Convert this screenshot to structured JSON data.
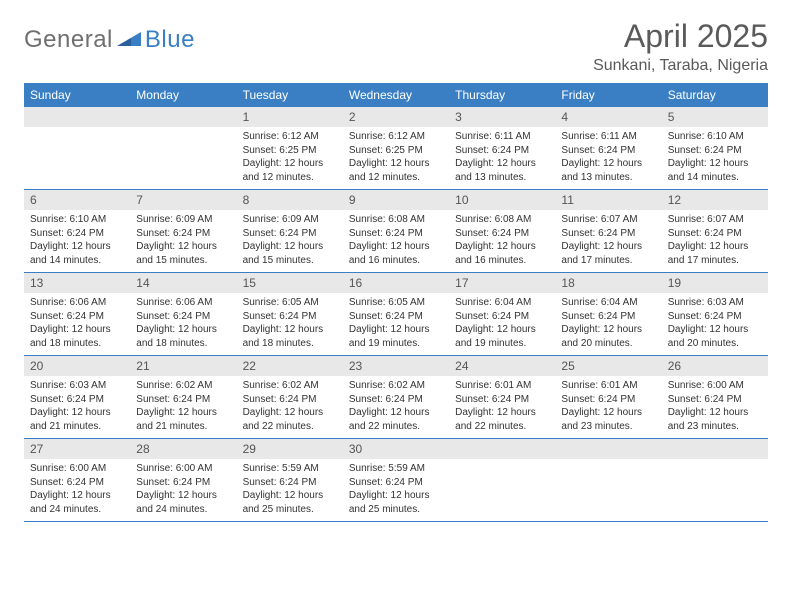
{
  "brand": {
    "general": "General",
    "blue": "Blue"
  },
  "title": "April 2025",
  "location": "Sunkani, Taraba, Nigeria",
  "colors": {
    "header_bg": "#3a7fc4",
    "daynum_bg": "#e8e8e8",
    "text": "#333333",
    "title_text": "#5a5a5a",
    "rule": "#3a7fc4",
    "page_bg": "#ffffff"
  },
  "dow": [
    "Sunday",
    "Monday",
    "Tuesday",
    "Wednesday",
    "Thursday",
    "Friday",
    "Saturday"
  ],
  "layout": {
    "first_weekday_index": 2,
    "num_days": 30,
    "cols": 7
  },
  "days": {
    "1": {
      "sunrise": "6:12 AM",
      "sunset": "6:25 PM",
      "daylight": "12 hours and 12 minutes."
    },
    "2": {
      "sunrise": "6:12 AM",
      "sunset": "6:25 PM",
      "daylight": "12 hours and 12 minutes."
    },
    "3": {
      "sunrise": "6:11 AM",
      "sunset": "6:24 PM",
      "daylight": "12 hours and 13 minutes."
    },
    "4": {
      "sunrise": "6:11 AM",
      "sunset": "6:24 PM",
      "daylight": "12 hours and 13 minutes."
    },
    "5": {
      "sunrise": "6:10 AM",
      "sunset": "6:24 PM",
      "daylight": "12 hours and 14 minutes."
    },
    "6": {
      "sunrise": "6:10 AM",
      "sunset": "6:24 PM",
      "daylight": "12 hours and 14 minutes."
    },
    "7": {
      "sunrise": "6:09 AM",
      "sunset": "6:24 PM",
      "daylight": "12 hours and 15 minutes."
    },
    "8": {
      "sunrise": "6:09 AM",
      "sunset": "6:24 PM",
      "daylight": "12 hours and 15 minutes."
    },
    "9": {
      "sunrise": "6:08 AM",
      "sunset": "6:24 PM",
      "daylight": "12 hours and 16 minutes."
    },
    "10": {
      "sunrise": "6:08 AM",
      "sunset": "6:24 PM",
      "daylight": "12 hours and 16 minutes."
    },
    "11": {
      "sunrise": "6:07 AM",
      "sunset": "6:24 PM",
      "daylight": "12 hours and 17 minutes."
    },
    "12": {
      "sunrise": "6:07 AM",
      "sunset": "6:24 PM",
      "daylight": "12 hours and 17 minutes."
    },
    "13": {
      "sunrise": "6:06 AM",
      "sunset": "6:24 PM",
      "daylight": "12 hours and 18 minutes."
    },
    "14": {
      "sunrise": "6:06 AM",
      "sunset": "6:24 PM",
      "daylight": "12 hours and 18 minutes."
    },
    "15": {
      "sunrise": "6:05 AM",
      "sunset": "6:24 PM",
      "daylight": "12 hours and 18 minutes."
    },
    "16": {
      "sunrise": "6:05 AM",
      "sunset": "6:24 PM",
      "daylight": "12 hours and 19 minutes."
    },
    "17": {
      "sunrise": "6:04 AM",
      "sunset": "6:24 PM",
      "daylight": "12 hours and 19 minutes."
    },
    "18": {
      "sunrise": "6:04 AM",
      "sunset": "6:24 PM",
      "daylight": "12 hours and 20 minutes."
    },
    "19": {
      "sunrise": "6:03 AM",
      "sunset": "6:24 PM",
      "daylight": "12 hours and 20 minutes."
    },
    "20": {
      "sunrise": "6:03 AM",
      "sunset": "6:24 PM",
      "daylight": "12 hours and 21 minutes."
    },
    "21": {
      "sunrise": "6:02 AM",
      "sunset": "6:24 PM",
      "daylight": "12 hours and 21 minutes."
    },
    "22": {
      "sunrise": "6:02 AM",
      "sunset": "6:24 PM",
      "daylight": "12 hours and 22 minutes."
    },
    "23": {
      "sunrise": "6:02 AM",
      "sunset": "6:24 PM",
      "daylight": "12 hours and 22 minutes."
    },
    "24": {
      "sunrise": "6:01 AM",
      "sunset": "6:24 PM",
      "daylight": "12 hours and 22 minutes."
    },
    "25": {
      "sunrise": "6:01 AM",
      "sunset": "6:24 PM",
      "daylight": "12 hours and 23 minutes."
    },
    "26": {
      "sunrise": "6:00 AM",
      "sunset": "6:24 PM",
      "daylight": "12 hours and 23 minutes."
    },
    "27": {
      "sunrise": "6:00 AM",
      "sunset": "6:24 PM",
      "daylight": "12 hours and 24 minutes."
    },
    "28": {
      "sunrise": "6:00 AM",
      "sunset": "6:24 PM",
      "daylight": "12 hours and 24 minutes."
    },
    "29": {
      "sunrise": "5:59 AM",
      "sunset": "6:24 PM",
      "daylight": "12 hours and 25 minutes."
    },
    "30": {
      "sunrise": "5:59 AM",
      "sunset": "6:24 PM",
      "daylight": "12 hours and 25 minutes."
    }
  },
  "labels": {
    "sunrise": "Sunrise: ",
    "sunset": "Sunset: ",
    "daylight": "Daylight: "
  }
}
